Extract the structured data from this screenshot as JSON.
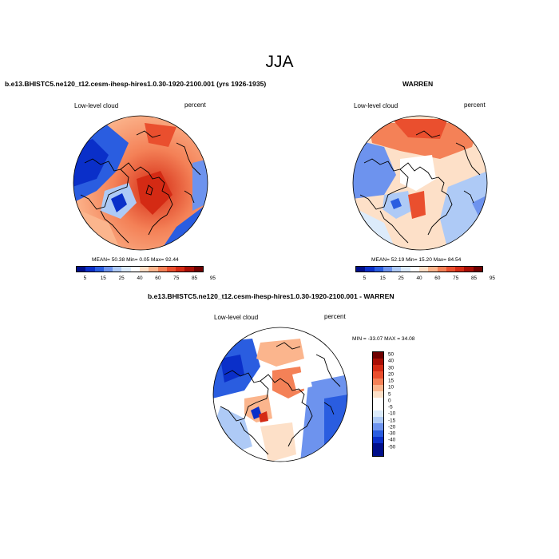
{
  "figure": {
    "title": "JJA"
  },
  "panels": {
    "model": {
      "title": "b.e13.BHISTC5.ne120_t12.cesm-ihesp-hires1.0.30-1920-2100.001 (yrs 1926-1935)",
      "left_label": "Low-level cloud",
      "right_label": "percent",
      "stats": "MEAN= 50.38  Min=  0.05  Max= 92.44"
    },
    "obs": {
      "title": "WARREN",
      "left_label": "Low-level cloud",
      "right_label": "percent",
      "stats": "MEAN= 52.19  Min= 15.20  Max= 84.54"
    },
    "diff": {
      "title": "b.e13.BHISTC5.ne120_t12.cesm-ihesp-hires1.0.30-1920-2100.001 - WARREN",
      "left_label": "Low-level cloud",
      "right_label": "percent",
      "stats": "MIN = -33.07 MAX =  34.08"
    }
  },
  "colorbars": {
    "abs": {
      "labels": [
        "5",
        "15",
        "25",
        "40",
        "60",
        "75",
        "85",
        "95"
      ],
      "colors": [
        "#000e8a",
        "#0a2fc9",
        "#2a5de0",
        "#6d93ee",
        "#aecaf6",
        "#dcebfb",
        "#ffffff",
        "#fde0c8",
        "#fbb58d",
        "#f48157",
        "#ea4f2e",
        "#d42a14",
        "#a80e05",
        "#6e0000"
      ]
    },
    "diff": {
      "labels": [
        "50",
        "40",
        "30",
        "20",
        "15",
        "10",
        "5",
        "0",
        "-5",
        "-10",
        "-15",
        "-20",
        "-30",
        "-40",
        "-50"
      ],
      "colors": [
        "#6e0000",
        "#a80e05",
        "#d42a14",
        "#ea4f2e",
        "#f48157",
        "#fbb58d",
        "#fde0c8",
        "#ffffff",
        "#ffffff",
        "#dcebfb",
        "#aecaf6",
        "#6d93ee",
        "#2a5de0",
        "#0a2fc9",
        "#000e8a",
        "#000e8a"
      ]
    }
  }
}
